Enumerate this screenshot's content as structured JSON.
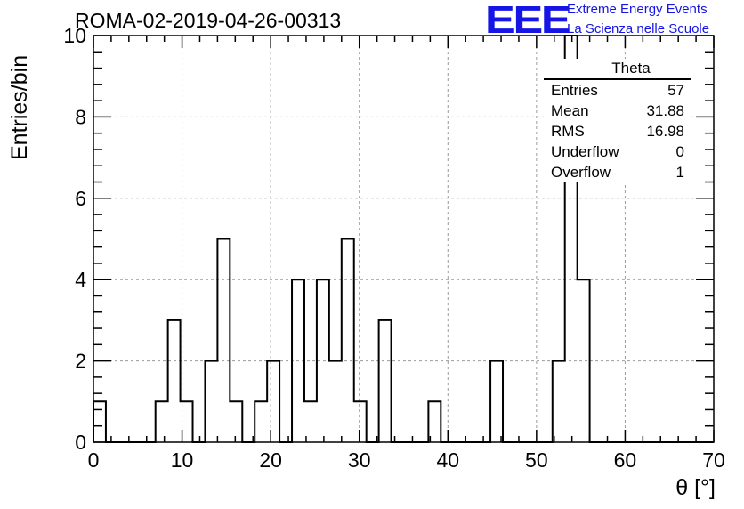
{
  "header": {
    "run_title": "ROMA-02-2019-04-26-00313",
    "logo_text": "EEE",
    "logo_line1": "Extreme Energy Events",
    "logo_line2": "La Scienza nelle Scuole",
    "logo_color": "#1515e6"
  },
  "stats_box": {
    "name": "Theta",
    "rows": [
      {
        "label": "Entries",
        "value": "57"
      },
      {
        "label": "Mean",
        "value": "31.88"
      },
      {
        "label": "RMS",
        "value": "16.98"
      },
      {
        "label": "Underflow",
        "value": "0"
      },
      {
        "label": "Overflow",
        "value": "1"
      }
    ]
  },
  "chart_data": {
    "type": "bar",
    "histogram": true,
    "title": "ROMA-02-2019-04-26-00313",
    "xlabel": "θ [°]",
    "ylabel": "Entries/bin",
    "xlim": [
      0,
      70
    ],
    "ylim": [
      0,
      10
    ],
    "xticks": [
      0,
      10,
      20,
      30,
      40,
      50,
      60,
      70
    ],
    "yticks": [
      0,
      2,
      4,
      6,
      8,
      10
    ],
    "grid": true,
    "bin_width": 1.4,
    "bin_edges_start": 0,
    "values": [
      1,
      0,
      0,
      0,
      0,
      1,
      3,
      1,
      0,
      2,
      5,
      1,
      0,
      1,
      2,
      0,
      4,
      1,
      4,
      2,
      5,
      1,
      0,
      3,
      0,
      0,
      0,
      1,
      0,
      0,
      0,
      0,
      2,
      0,
      0,
      0,
      0,
      2,
      10,
      4,
      0,
      0,
      0,
      0,
      0,
      0,
      0,
      0,
      0,
      0
    ],
    "line_color": "#000000",
    "grid_color": "#9a9a9a"
  }
}
